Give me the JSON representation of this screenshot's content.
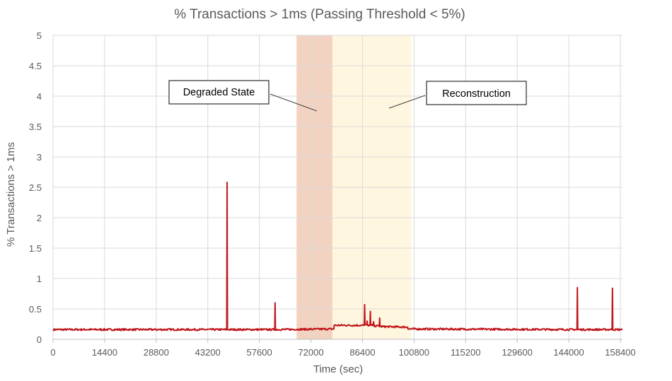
{
  "chart_data": {
    "type": "line",
    "title": "% Transactions > 1ms (Passing Threshold < 5%)",
    "xlabel": "Time (sec)",
    "ylabel": "% Transactions > 1ms",
    "xlim": [
      0,
      159000
    ],
    "ylim": [
      0,
      5
    ],
    "x_ticks": [
      "0",
      "14400",
      "28800",
      "43200",
      "57600",
      "72000",
      "86400",
      "100800",
      "115200",
      "129600",
      "144000",
      "158400"
    ],
    "y_ticks": [
      "0",
      "0.5",
      "1",
      "1.5",
      "2",
      "2.5",
      "3",
      "3.5",
      "4",
      "4.5",
      "5"
    ],
    "grid": true,
    "legend": "none",
    "series": [
      {
        "color": "#c0161b",
        "baseline": 0.16,
        "x": [
          0,
          48500,
          48600,
          48700,
          61900,
          62000,
          62100,
          78400,
          78500,
          86900,
          87000,
          87100,
          87600,
          87700,
          87800,
          88500,
          88600,
          88700,
          89400,
          89500,
          89600,
          91100,
          91200,
          91300,
          99000,
          99100,
          146300,
          146400,
          146500,
          156100,
          156200,
          156300,
          159000
        ],
        "values": [
          0.16,
          0.16,
          2.58,
          0.16,
          0.16,
          0.6,
          0.16,
          0.17,
          0.23,
          0.23,
          0.57,
          0.24,
          0.24,
          0.3,
          0.23,
          0.23,
          0.46,
          0.23,
          0.23,
          0.29,
          0.22,
          0.22,
          0.35,
          0.21,
          0.2,
          0.17,
          0.16,
          0.85,
          0.16,
          0.16,
          0.84,
          0.16,
          0.16
        ]
      }
    ],
    "regions": [
      {
        "label": "Degraded State",
        "x_start": 68000,
        "x_end": 78000,
        "color": "#f2d3c1"
      },
      {
        "label": "Reconstruction",
        "x_start": 78000,
        "x_end": 100000,
        "color": "#fff6e0"
      }
    ]
  }
}
